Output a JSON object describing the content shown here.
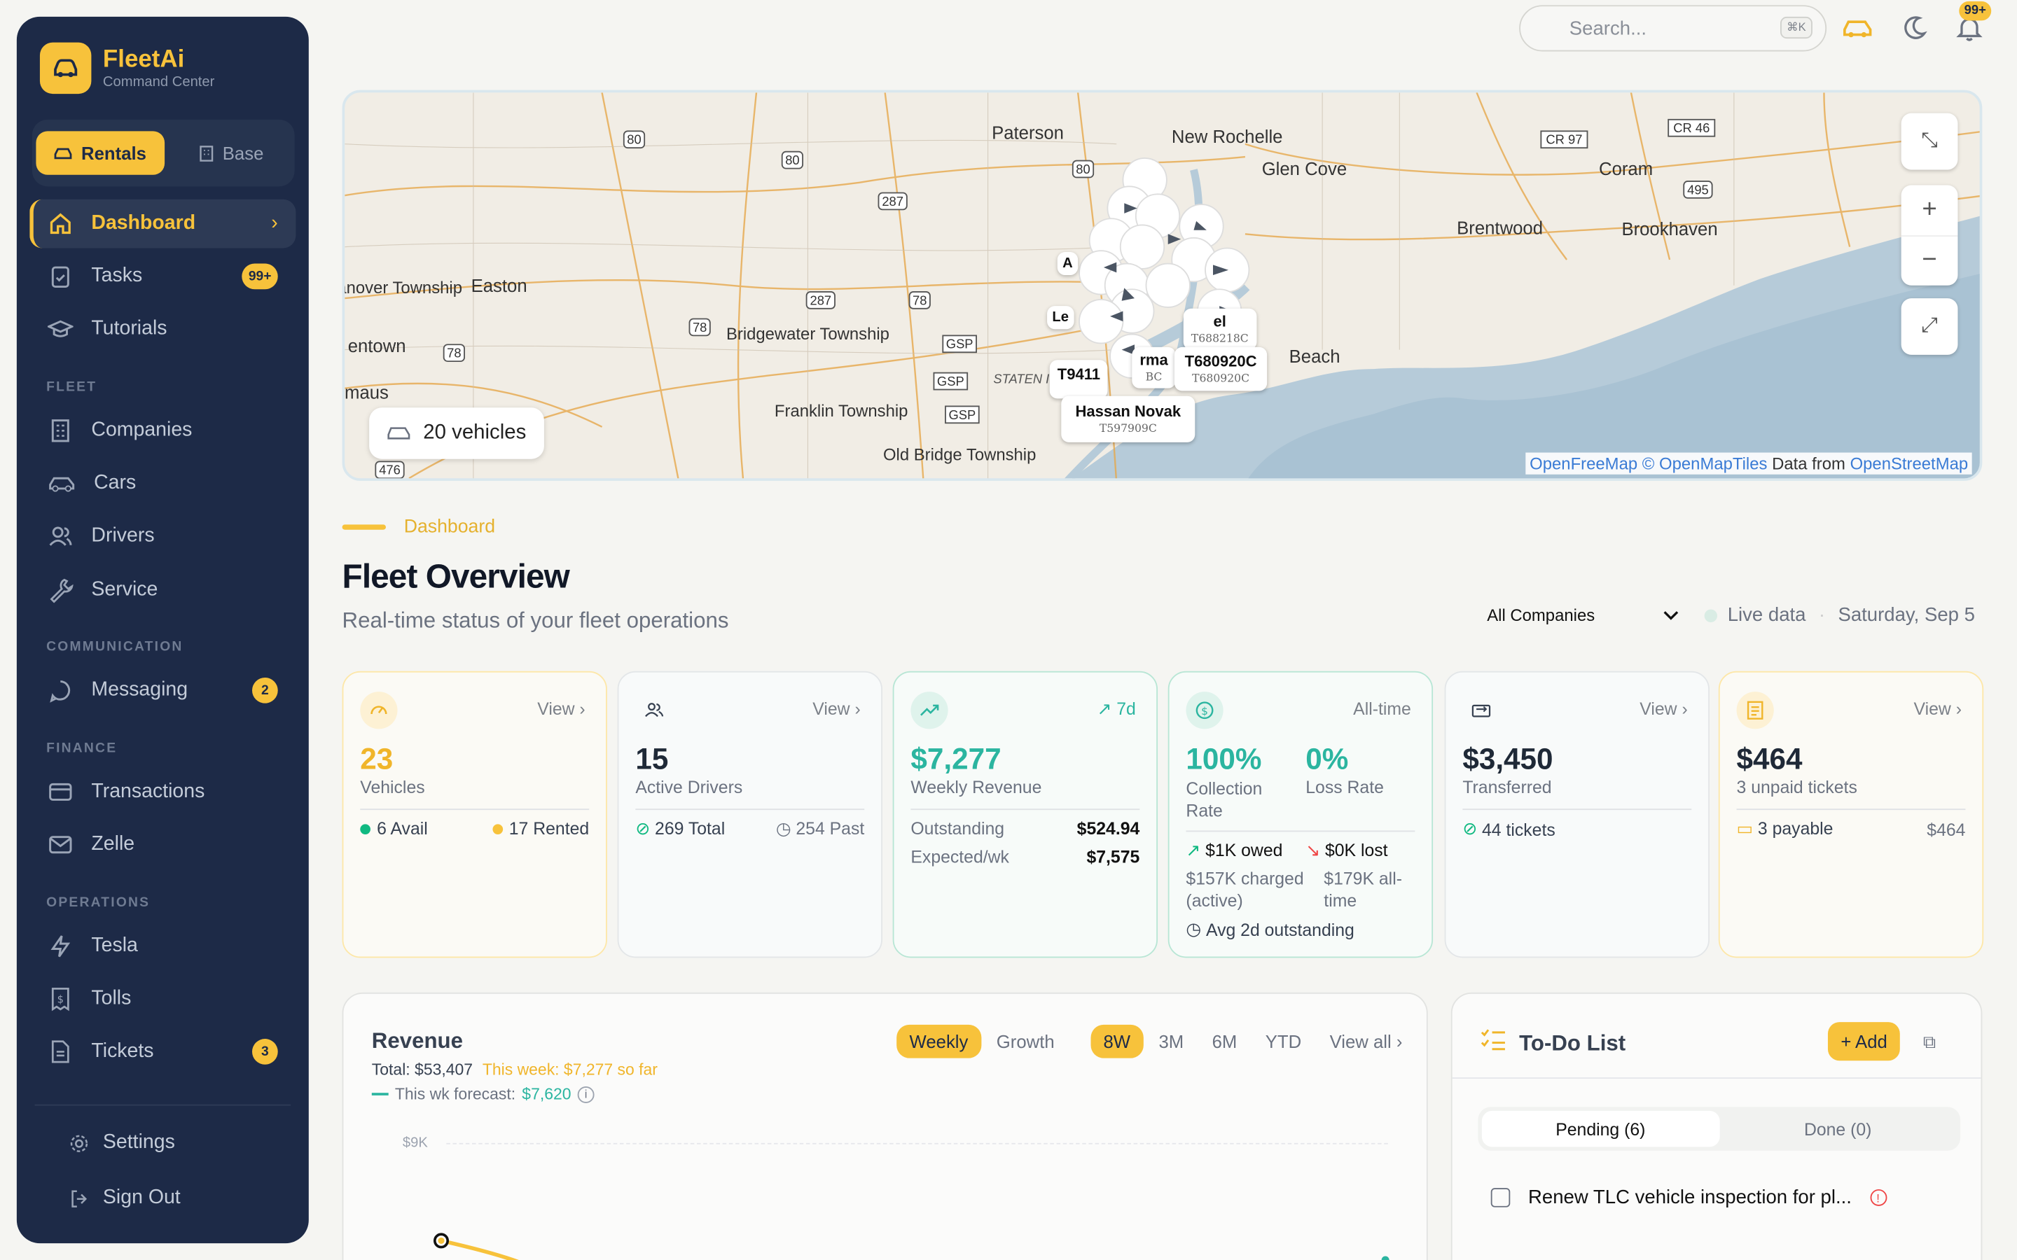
{
  "brand": {
    "name": "FleetAi",
    "subtitle": "Command Center"
  },
  "mode": {
    "rentals": "Rentals",
    "base": "Base"
  },
  "nav": {
    "dashboard": "Dashboard",
    "tasks": "Tasks",
    "tasks_badge": "99+",
    "tutorials": "Tutorials",
    "fleet_section": "FLEET",
    "companies": "Companies",
    "cars": "Cars",
    "drivers": "Drivers",
    "service": "Service",
    "comm_section": "COMMUNICATION",
    "messaging": "Messaging",
    "messaging_badge": "2",
    "finance_section": "FINANCE",
    "transactions": "Transactions",
    "zelle": "Zelle",
    "ops_section": "OPERATIONS",
    "tesla": "Tesla",
    "tolls": "Tolls",
    "tickets": "Tickets",
    "tickets_badge": "3",
    "settings": "Settings",
    "signout": "Sign Out"
  },
  "topbar": {
    "search_placeholder": "Search...",
    "search_kbd": "⌘K",
    "notif_badge": "99+"
  },
  "map": {
    "vehicles": "20 vehicles",
    "credit_ofm": "OpenFreeMap",
    "credit_omt": "© OpenMapTiles",
    "credit_data": "Data from",
    "credit_osm": "OpenStreetMap",
    "places": [
      "Paterson",
      "New Rochelle",
      "Glen Cove",
      "Coram",
      "Brentwood",
      "Brookhaven",
      "Hanover Township",
      "Easton",
      "entown",
      "maus",
      "Bridgewater Township",
      "Franklin Township",
      "Old Bridge Township",
      "Beach",
      "STATEN I"
    ],
    "routes": [
      "80",
      "80",
      "80",
      "287",
      "287",
      "78",
      "78",
      "78",
      "GSP",
      "GSP",
      "GSP",
      "476",
      "CR 97",
      "CR 46",
      "495"
    ],
    "markers": [
      {
        "name": "Hassan Novak",
        "plate": "T597909C"
      },
      {
        "name": "T680920C",
        "plate": "T680920C"
      },
      {
        "name": "T9411",
        "plate": ""
      },
      {
        "name": "Le",
        "plate": ""
      },
      {
        "name": "A",
        "plate": ""
      },
      {
        "name": "el",
        "plate": "T688218C"
      },
      {
        "name": "rma",
        "plate": "BC"
      }
    ]
  },
  "page": {
    "crumb": "Dashboard",
    "title": "Fleet Overview",
    "subtitle": "Real-time status of your fleet operations",
    "company_filter": "All Companies",
    "live": "Live data",
    "date": "Saturday, Sep 5"
  },
  "cards": {
    "vehicles": {
      "link": "View",
      "value": "23",
      "label": "Vehicles",
      "avail": "6 Avail",
      "rented": "17 Rented"
    },
    "drivers": {
      "link": "View",
      "value": "15",
      "label": "Active Drivers",
      "total": "269 Total",
      "past": "254 Past"
    },
    "revenue": {
      "link": "7d",
      "value": "$7,277",
      "label": "Weekly Revenue",
      "outstanding_label": "Outstanding",
      "outstanding": "$524.94",
      "expected_label": "Expected/wk",
      "expected": "$7,575"
    },
    "collection": {
      "link": "All-time",
      "rate": "100%",
      "rate_label": "Collection Rate",
      "loss": "0%",
      "loss_label": "Loss Rate",
      "owed": "$1K owed",
      "lost": "$0K lost",
      "charged": "$157K charged (active)",
      "alltime": "$179K all-time",
      "avg": "Avg 2d outstanding"
    },
    "transferred": {
      "link": "View",
      "value": "$3,450",
      "label": "Transferred",
      "tickets": "44 tickets"
    },
    "unpaid": {
      "link": "View",
      "value": "$464",
      "label": "3 unpaid tickets",
      "payable": "3 payable",
      "amount": "$464"
    }
  },
  "revenue": {
    "title": "Revenue",
    "total": "Total: $53,407",
    "this_week": "This week: $7,277 so far",
    "forecast_label": "This wk forecast:",
    "forecast": "$7,620",
    "tabs": {
      "weekly": "Weekly",
      "growth": "Growth",
      "w8": "8W",
      "m3": "3M",
      "m6": "6M",
      "ytd": "YTD",
      "view_all": "View all"
    },
    "ytick": "$9K"
  },
  "todo": {
    "title": "To-Do List",
    "add": "+ Add",
    "pending": "Pending (6)",
    "done": "Done (0)",
    "item1": "Renew TLC vehicle inspection for pl..."
  },
  "colors": {
    "accent": "#f7c23b",
    "sidebar": "#1d2a47",
    "green": "#10b981",
    "teal": "#2bb5a0"
  }
}
